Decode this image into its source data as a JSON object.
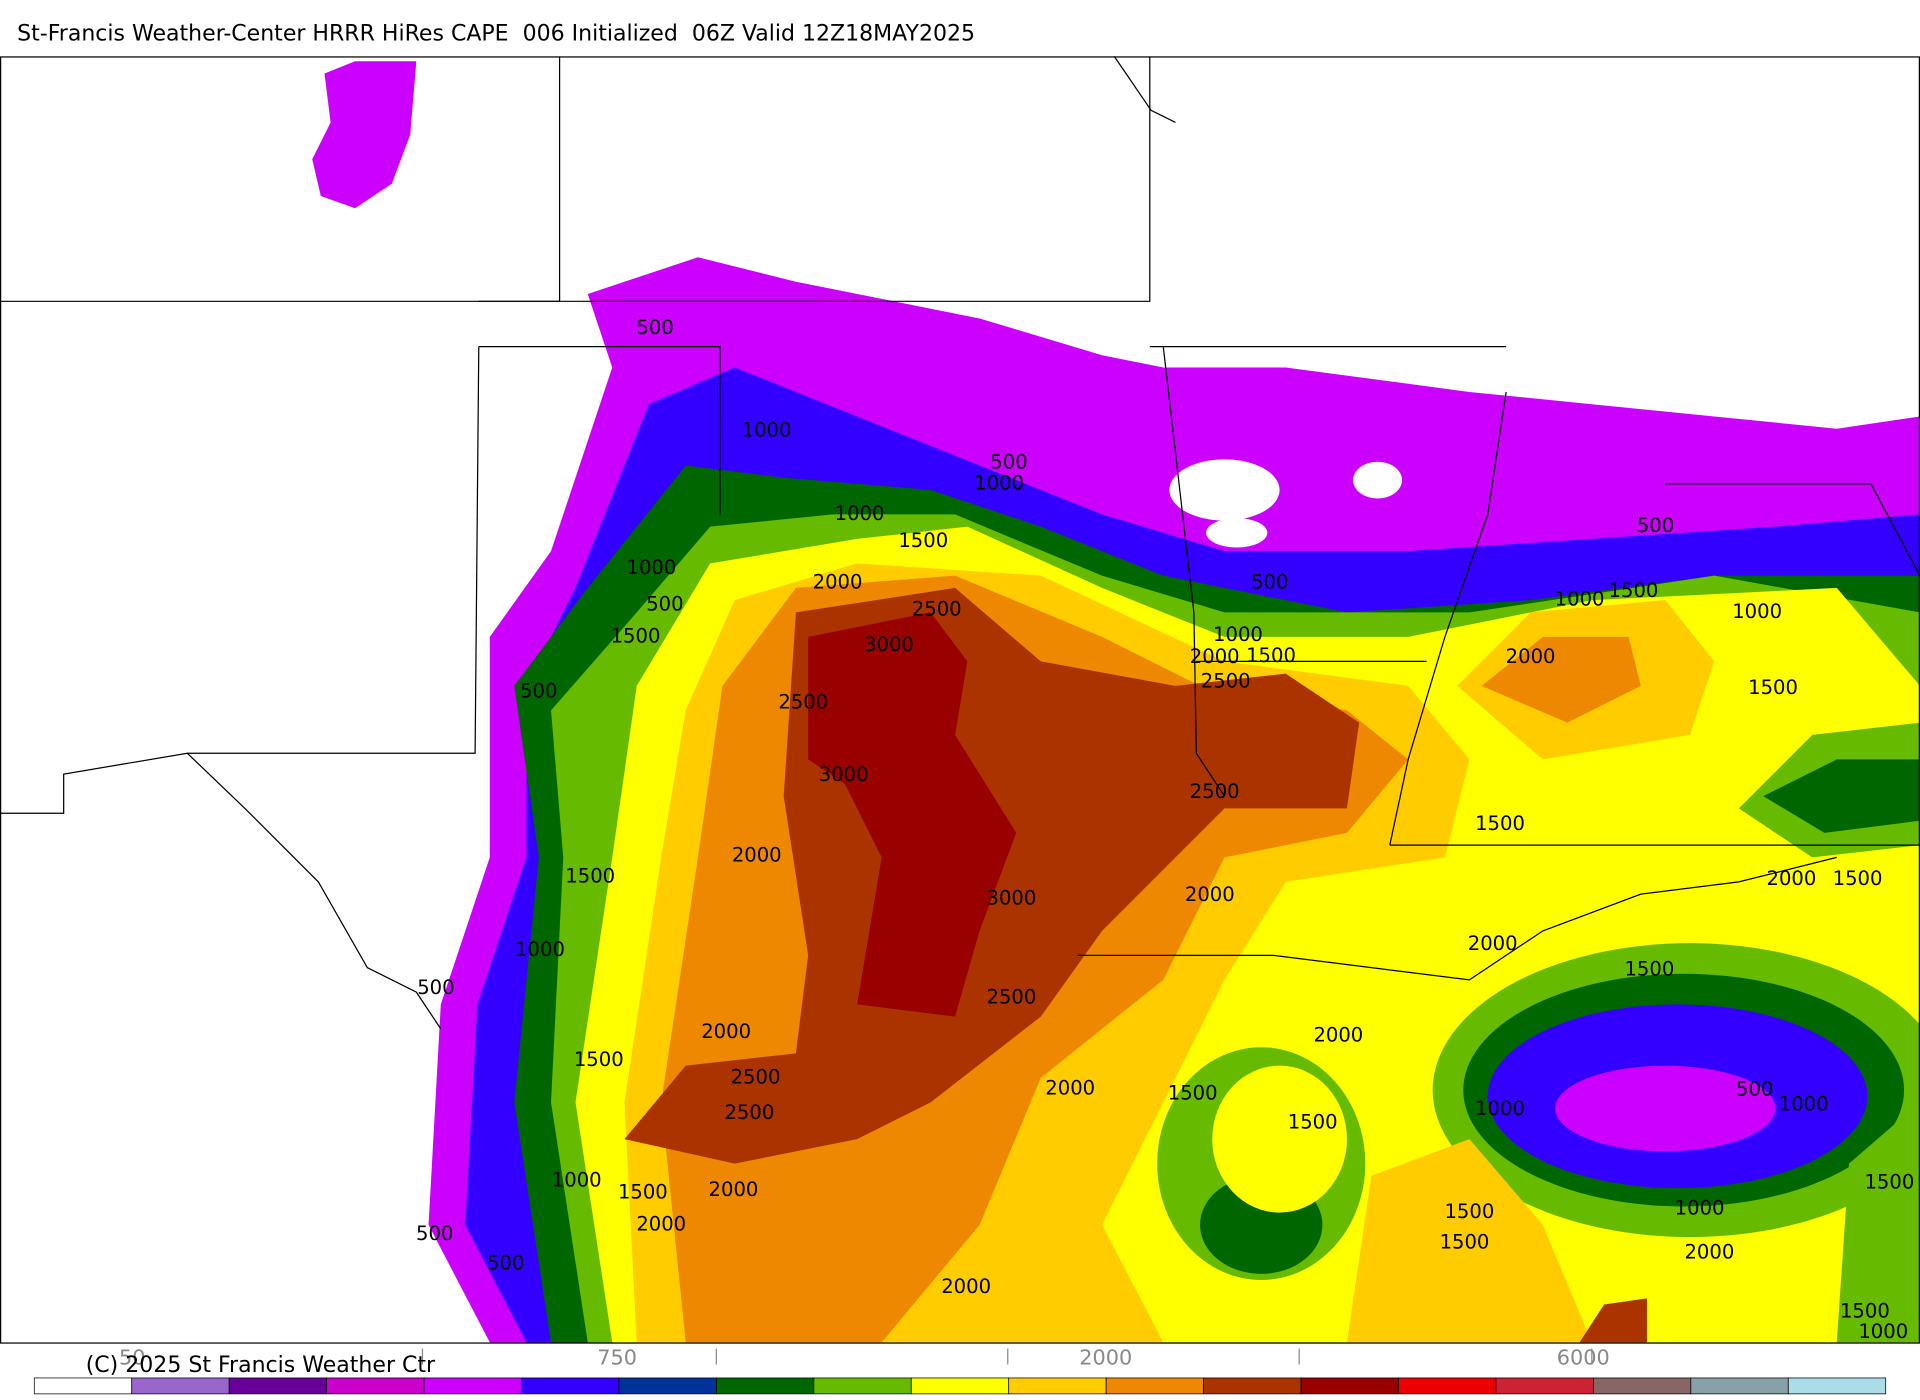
{
  "header": {
    "title": "St-Francis Weather-Center HRRR HiRes CAPE  006 Initialized  06Z Valid 12Z18MAY2025"
  },
  "map": {
    "contour_labels": [
      500,
      1000,
      500,
      1000,
      1000,
      1500,
      1000,
      2000,
      500,
      2500,
      1500,
      3000,
      500,
      2500,
      3000,
      2000,
      1500,
      3000,
      1000,
      500,
      2500,
      2000,
      1500,
      2500,
      2000,
      2500,
      1000,
      1500,
      2000,
      2000,
      500,
      500,
      2000,
      500,
      1000,
      2000,
      1500,
      2500,
      2500,
      2000,
      1500,
      1500,
      2000,
      500,
      1000,
      1500,
      2000,
      1000,
      1500,
      1500,
      2000,
      1500,
      2000,
      1500,
      500,
      1000,
      1000,
      1500,
      1000,
      1500,
      1500,
      2000,
      1500,
      1000
    ]
  },
  "colorbar": {
    "colors": [
      "#ffffff",
      "#9966cc",
      "#660099",
      "#cc00cc",
      "#cc00ff",
      "#3300ff",
      "#003399",
      "#006600",
      "#66bb00",
      "#ffff00",
      "#ffcc00",
      "#ee8800",
      "#aa3300",
      "#990000",
      "#ee0000",
      "#cc2233",
      "#886666",
      "#88a0a8",
      "#aadde8"
    ],
    "labels": [
      "50",
      "750",
      "2000",
      "6000"
    ],
    "copyright": "(C) 2025 St Francis Weather Ctr"
  }
}
